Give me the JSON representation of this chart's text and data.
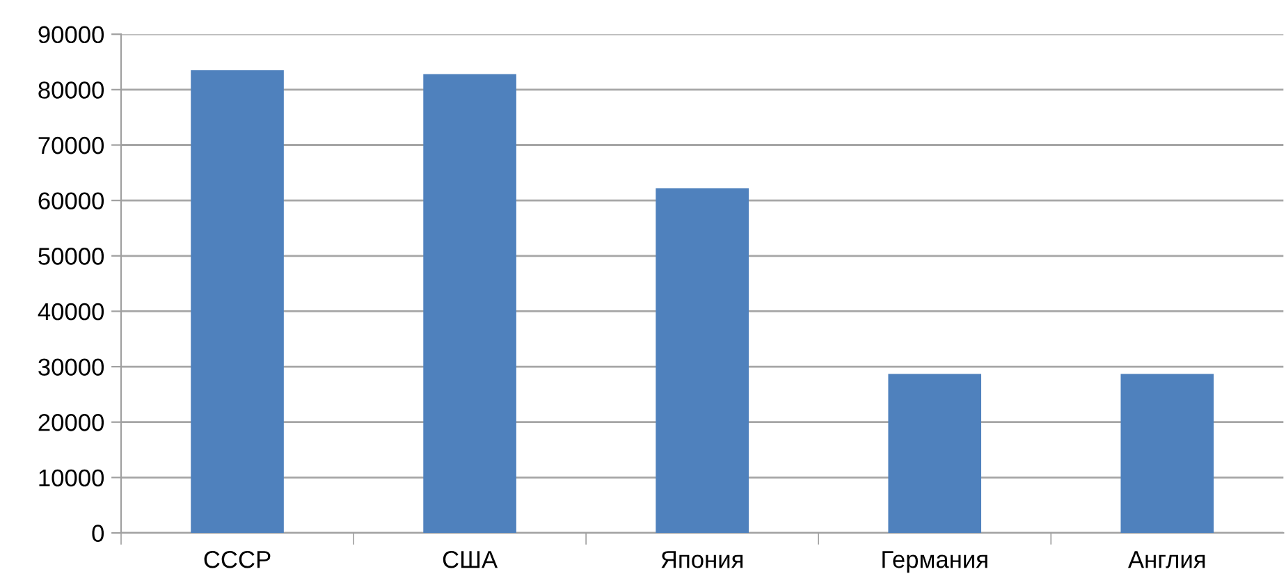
{
  "chart_data": {
    "type": "bar",
    "categories": [
      "СССР",
      "США",
      "Япония",
      "Германия",
      "Англия"
    ],
    "values": [
      83500,
      82800,
      62200,
      28700,
      28700
    ],
    "color": "#4f81bd",
    "ylim": [
      0,
      90000
    ],
    "yticks": [
      0,
      10000,
      20000,
      30000,
      40000,
      50000,
      60000,
      70000,
      80000,
      90000
    ],
    "grid": "y",
    "legend": false
  }
}
